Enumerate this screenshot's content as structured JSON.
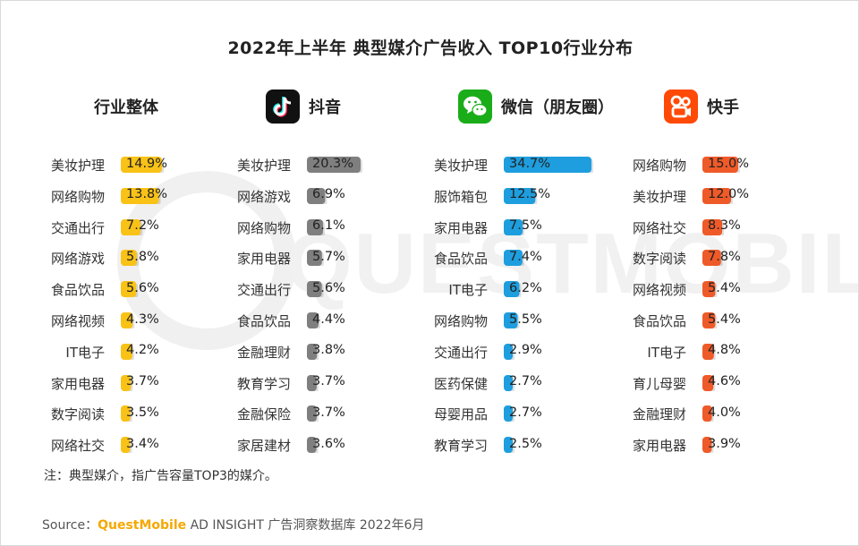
{
  "title": "2022年上半年 典型媒介广告收入 TOP10行业分布",
  "watermark_text": "QUESTMOBILE",
  "note": "注：典型媒介，指广告容量TOP3的媒介。",
  "source": {
    "prefix": "Source：",
    "brand": "QuestMobile",
    "suffix": " AD INSIGHT 广告洞察数据库 2022年6月"
  },
  "colors": {
    "overall": "#f9c217",
    "douyin": "#7f7f7f",
    "wechat": "#1e9ede",
    "kuaishou": "#ef5a29"
  },
  "chart_data": [
    {
      "type": "bar",
      "title": "行业整体",
      "icon": "none",
      "categories": [
        "美妆护理",
        "网络购物",
        "交通出行",
        "网络游戏",
        "食品饮品",
        "网络视频",
        "IT电子",
        "家用电器",
        "数字阅读",
        "网络社交"
      ],
      "values": [
        14.9,
        13.8,
        7.2,
        5.8,
        5.6,
        4.3,
        4.2,
        3.7,
        3.5,
        3.4
      ],
      "labels": [
        "14.9%",
        "13.8%",
        "7.2%",
        "5.8%",
        "5.6%",
        "4.3%",
        "4.2%",
        "3.7%",
        "3.5%",
        "3.4%"
      ],
      "unit": "%"
    },
    {
      "type": "bar",
      "title": "抖音",
      "icon": "tiktok-icon",
      "categories": [
        "美妆护理",
        "网络游戏",
        "网络购物",
        "家用电器",
        "交通出行",
        "食品饮品",
        "金融理财",
        "教育学习",
        "金融保险",
        "家居建材"
      ],
      "values": [
        20.3,
        6.9,
        6.1,
        5.7,
        5.6,
        4.4,
        3.8,
        3.7,
        3.7,
        3.6
      ],
      "labels": [
        "20.3%",
        "6.9%",
        "6.1%",
        "5.7%",
        "5.6%",
        "4.4%",
        "3.8%",
        "3.7%",
        "3.7%",
        "3.6%"
      ],
      "unit": "%"
    },
    {
      "type": "bar",
      "title": "微信（朋友圈）",
      "icon": "wechat-icon",
      "categories": [
        "美妆护理",
        "服饰箱包",
        "家用电器",
        "食品饮品",
        "IT电子",
        "网络购物",
        "交通出行",
        "医药保健",
        "母婴用品",
        "教育学习"
      ],
      "values": [
        34.7,
        12.5,
        7.5,
        7.4,
        6.2,
        5.5,
        2.9,
        2.7,
        2.7,
        2.5
      ],
      "labels": [
        "34.7%",
        "12.5%",
        "7.5%",
        "7.4%",
        "6.2%",
        "5.5%",
        "2.9%",
        "2.7%",
        "2.7%",
        "2.5%"
      ],
      "unit": "%"
    },
    {
      "type": "bar",
      "title": "快手",
      "icon": "kuaishou-icon",
      "categories": [
        "网络购物",
        "美妆护理",
        "网络社交",
        "数字阅读",
        "网络视频",
        "食品饮品",
        "IT电子",
        "育儿母婴",
        "金融理财",
        "家用电器"
      ],
      "values": [
        15.0,
        12.0,
        8.3,
        7.8,
        5.4,
        5.4,
        4.8,
        4.6,
        4.0,
        3.9
      ],
      "labels": [
        "15.0%",
        "12.0%",
        "8.3%",
        "7.8%",
        "5.4%",
        "5.4%",
        "4.8%",
        "4.6%",
        "4.0%",
        "3.9%"
      ],
      "unit": "%"
    }
  ]
}
